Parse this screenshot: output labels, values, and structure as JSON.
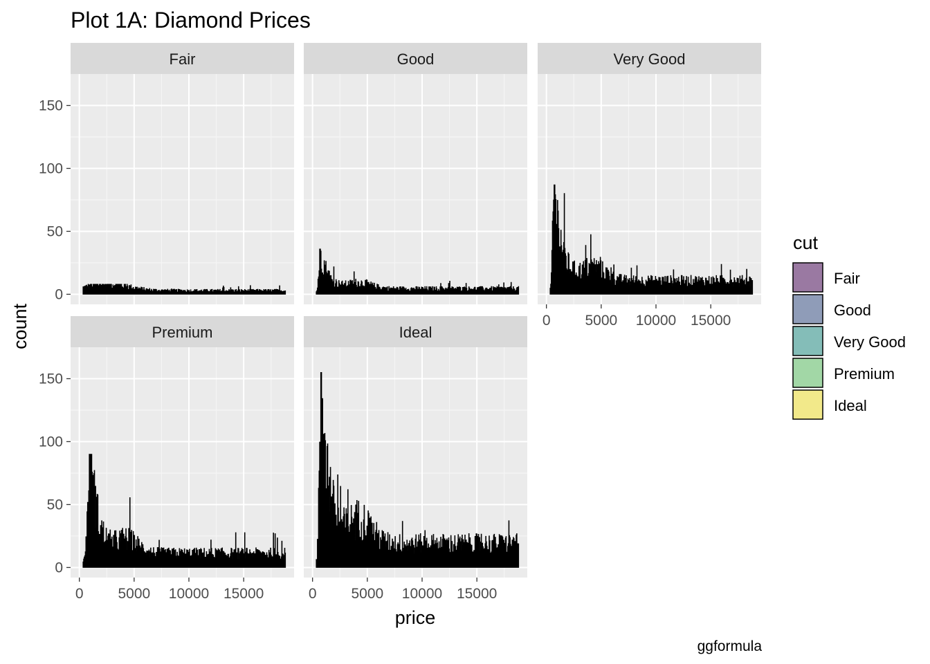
{
  "chart_data": {
    "type": "histogram",
    "title": "Plot 1A: Diamond Prices",
    "xlabel": "price",
    "ylabel": "count",
    "caption": "ggformula",
    "xlim": [
      0,
      18823
    ],
    "ylim": [
      0,
      160
    ],
    "x_ticks": [
      0,
      5000,
      10000,
      15000
    ],
    "x_tick_labels": [
      "0",
      "5000",
      "10000",
      "15000"
    ],
    "y_ticks": [
      0,
      50,
      100,
      150
    ],
    "y_tick_labels": [
      "0",
      "50",
      "100",
      "150"
    ],
    "grid": true,
    "legend": {
      "title": "cut",
      "position": "right",
      "items": [
        {
          "label": "Fair",
          "color": "#9A79A2"
        },
        {
          "label": "Good",
          "color": "#8F9CB8"
        },
        {
          "label": "Very Good",
          "color": "#84BDB8"
        },
        {
          "label": "Premium",
          "color": "#A2D7A6"
        },
        {
          "label": "Ideal",
          "color": "#F2E98A"
        }
      ]
    },
    "bar_color": "#000000",
    "facets": [
      {
        "name": "Fair",
        "peak": {
          "x": 2600,
          "y": 8
        },
        "shape": "flat",
        "xaxis_labels": false
      },
      {
        "name": "Good",
        "peak": {
          "x": 700,
          "y": 36
        },
        "shape": "skewed",
        "xaxis_labels": false
      },
      {
        "name": "Very Good",
        "peak": {
          "x": 700,
          "y": 87
        },
        "shape": "skewed",
        "xaxis_labels": true
      },
      {
        "name": "Premium",
        "peak": {
          "x": 1000,
          "y": 90
        },
        "shape": "skewed",
        "xaxis_labels": true
      },
      {
        "name": "Ideal",
        "peak": {
          "x": 800,
          "y": 155
        },
        "shape": "skewed",
        "xaxis_labels": true
      }
    ]
  }
}
